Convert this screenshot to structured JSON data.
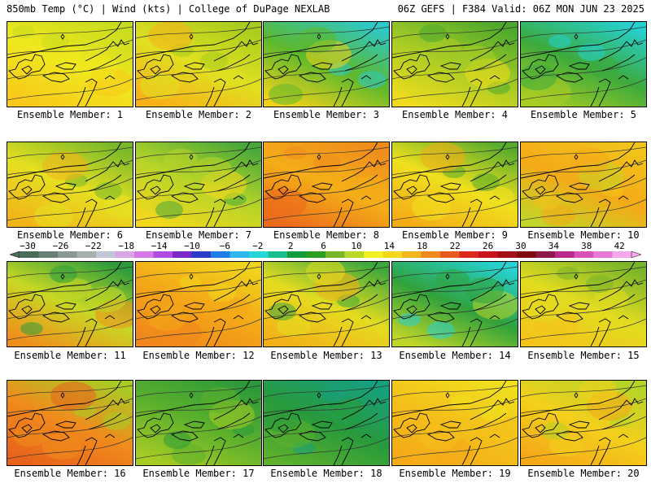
{
  "header": {
    "left": "850mb Temp (°C) | Wind (kts) | College of DuPage NEXLAB",
    "right": "06Z GEFS | F384 Valid: 06Z MON JUN 23 2025"
  },
  "colorbar": {
    "ticks": [
      "−30",
      "−26",
      "−22",
      "−18",
      "−14",
      "−10",
      "−6",
      "−2",
      "2",
      "6",
      "10",
      "14",
      "18",
      "22",
      "26",
      "30",
      "34",
      "38",
      "42"
    ],
    "colors": [
      "#4b6b5b",
      "#6a7f74",
      "#8a9a92",
      "#a5b0ab",
      "#c0c8d8",
      "#d6a6e6",
      "#d676e8",
      "#b04ce0",
      "#7a28c8",
      "#2c3cc8",
      "#1f7fe6",
      "#2fb8ee",
      "#27d6d6",
      "#1bbf8f",
      "#109c3c",
      "#2e9e1e",
      "#78b828",
      "#b8d82a",
      "#f2f020",
      "#f6d81a",
      "#f4b41a",
      "#f08a1c",
      "#e85a1c",
      "#dc2a1c",
      "#c8141a",
      "#a40e16",
      "#80080e",
      "#8c1a4a",
      "#b82a8c",
      "#d850b8",
      "#e878d8",
      "#f6a8ec"
    ]
  },
  "panels": [
    {
      "label": "Ensemble Member: 1",
      "colors": [
        "#c8dc1e",
        "#f0e81e",
        "#f8c81a"
      ]
    },
    {
      "label": "Ensemble Member: 2",
      "colors": [
        "#a8cc1e",
        "#e0e020",
        "#f8b018"
      ]
    },
    {
      "label": "Ensemble Member: 3",
      "colors": [
        "#2fc8c8",
        "#5cb82c",
        "#f0d21c"
      ]
    },
    {
      "label": "Ensemble Member: 4",
      "colors": [
        "#4ca82c",
        "#a8cc24",
        "#f0dc1c"
      ]
    },
    {
      "label": "Ensemble Member: 5",
      "colors": [
        "#26d0d0",
        "#3caa3c",
        "#a8cc24"
      ]
    },
    {
      "label": "Ensemble Member: 6",
      "colors": [
        "#78b82a",
        "#e6e020",
        "#f2b418"
      ]
    },
    {
      "label": "Ensemble Member: 7",
      "colors": [
        "#48a83a",
        "#b8d428",
        "#f4d81c"
      ]
    },
    {
      "label": "Ensemble Member: 8",
      "colors": [
        "#f08c1c",
        "#f4ae18",
        "#ec6a1c"
      ]
    },
    {
      "label": "Ensemble Member: 9",
      "colors": [
        "#58ac2c",
        "#f0e01e",
        "#f4ac18"
      ]
    },
    {
      "label": "Ensemble Member: 10",
      "colors": [
        "#f2c41a",
        "#f4aa18",
        "#c4d428"
      ]
    },
    {
      "label": "Ensemble Member: 11",
      "colors": [
        "#2c9c3c",
        "#c8d824",
        "#f08e1c"
      ]
    },
    {
      "label": "Ensemble Member: 12",
      "colors": [
        "#f0d41c",
        "#f4a818",
        "#f0861c"
      ]
    },
    {
      "label": "Ensemble Member: 13",
      "colors": [
        "#3ca83c",
        "#e4dc20",
        "#f4b018"
      ]
    },
    {
      "label": "Ensemble Member: 14",
      "colors": [
        "#26d2d2",
        "#30a23c",
        "#c0d628"
      ]
    },
    {
      "label": "Ensemble Member: 15",
      "colors": [
        "#78b42a",
        "#e2dc20",
        "#f4c41a"
      ]
    },
    {
      "label": "Ensemble Member: 16",
      "colors": [
        "#a8cc24",
        "#f08c1c",
        "#e8621c"
      ]
    },
    {
      "label": "Ensemble Member: 17",
      "colors": [
        "#2c9a3a",
        "#5cb02c",
        "#a8cc24"
      ]
    },
    {
      "label": "Ensemble Member: 18",
      "colors": [
        "#17a080",
        "#289a3c",
        "#5cb02c"
      ]
    },
    {
      "label": "Ensemble Member: 19",
      "colors": [
        "#f0e01e",
        "#f4c01a",
        "#f4aa18"
      ]
    },
    {
      "label": "Ensemble Member: 20",
      "colors": [
        "#b4d428",
        "#f4d01c",
        "#f4a818"
      ]
    }
  ]
}
